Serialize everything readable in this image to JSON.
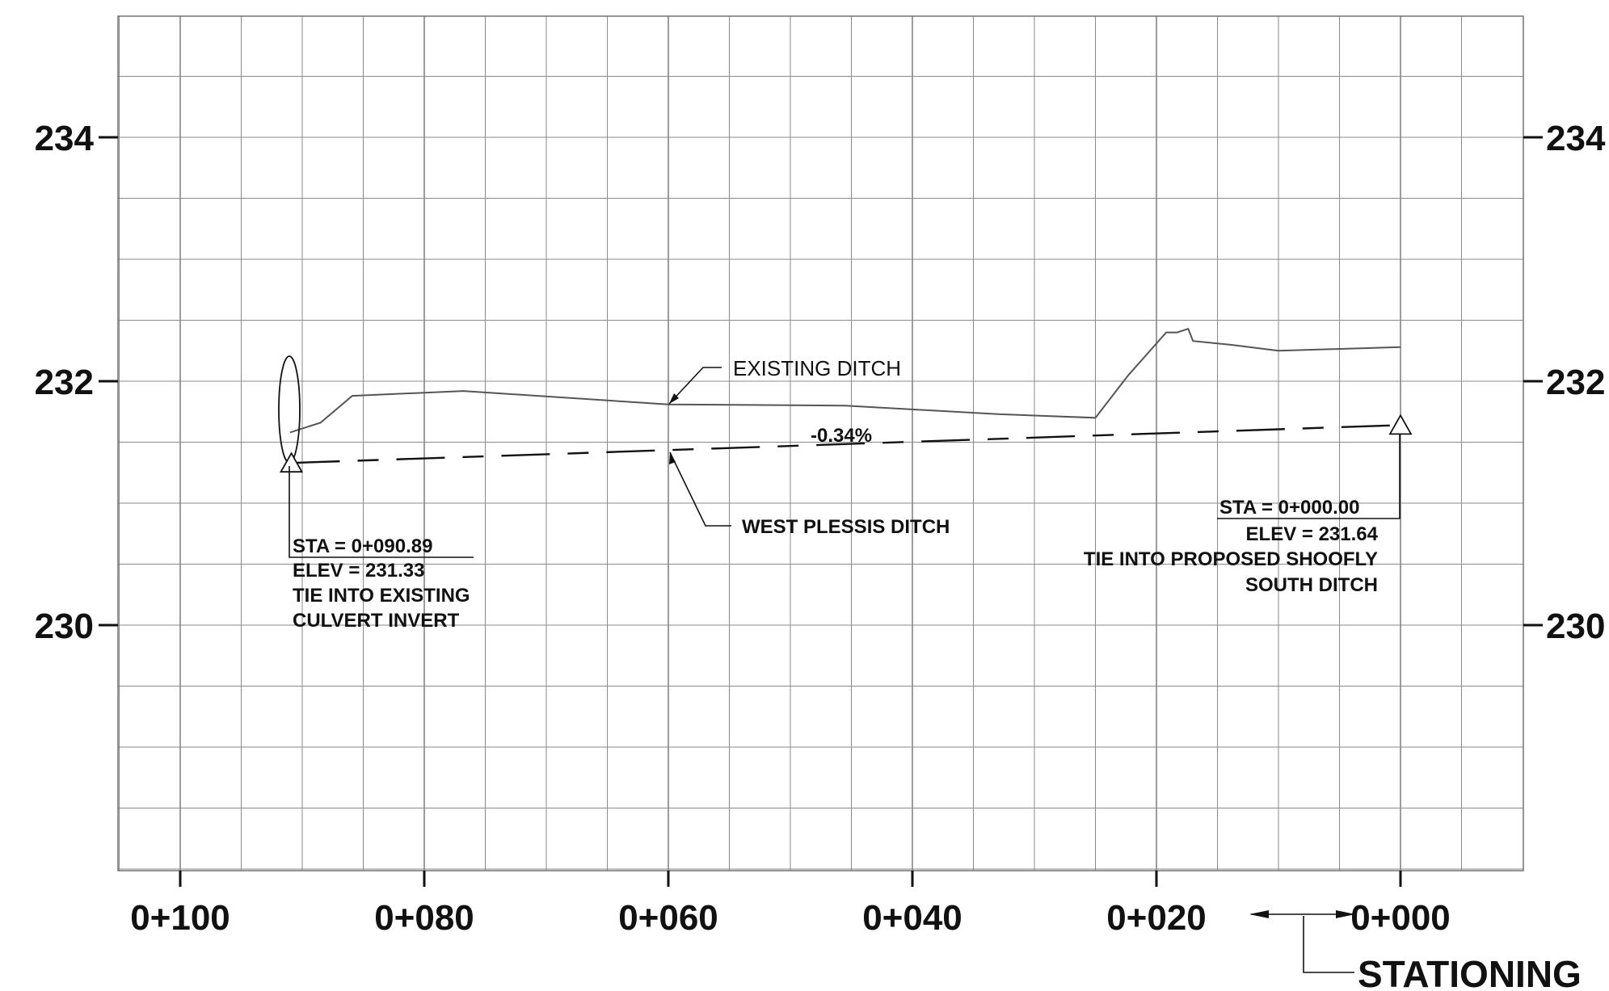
{
  "y_axis": {
    "labels": [
      "234",
      "232",
      "230"
    ]
  },
  "x_axis": {
    "labels": [
      "0+100",
      "0+080",
      "0+060",
      "0+040",
      "0+020",
      "0+000"
    ]
  },
  "stationing_title": "STATIONING",
  "annotations": {
    "existing_ditch": "EXISTING DITCH",
    "west_plessis_ditch": "WEST PLESSIS DITCH",
    "grade": "-0.34%",
    "left_tie": {
      "sta": "STA = 0+090.89",
      "elev": "ELEV =  231.33",
      "line1": "TIE INTO EXISTING",
      "line2": "CULVERT INVERT"
    },
    "right_tie": {
      "sta": "STA = 0+000.00",
      "elev": "ELEV =  231.64",
      "line1": "TIE INTO PROPOSED SHOOFLY",
      "line2": "SOUTH DITCH"
    }
  },
  "chart_data": {
    "type": "line",
    "xlabel": "STATIONING",
    "ylabel": "",
    "x_reversed": true,
    "xlim": [
      0,
      105
    ],
    "ylim": [
      228,
      235
    ],
    "x_ticks": [
      100,
      80,
      60,
      40,
      20,
      0
    ],
    "y_ticks": [
      234,
      232,
      230
    ],
    "grid": true,
    "series": [
      {
        "name": "EXISTING DITCH",
        "style": "solid",
        "x": [
          91.0,
          88.5,
          85.9,
          76.8,
          60.0,
          45.5,
          33.0,
          25.0,
          22.3,
          19.2,
          18.3,
          17.4,
          17.0,
          14.0,
          10.0,
          0.0
        ],
        "y": [
          231.58,
          231.66,
          231.88,
          231.92,
          231.81,
          231.8,
          231.73,
          231.7,
          232.05,
          232.4,
          232.4,
          232.43,
          232.33,
          232.3,
          232.25,
          232.28
        ]
      },
      {
        "name": "WEST PLESSIS DITCH",
        "style": "dashed",
        "x": [
          90.89,
          0.0
        ],
        "y": [
          231.33,
          231.64
        ]
      }
    ],
    "points": [
      {
        "station": 90.89,
        "elev": 231.33
      },
      {
        "station": 0.0,
        "elev": 231.64
      }
    ]
  }
}
